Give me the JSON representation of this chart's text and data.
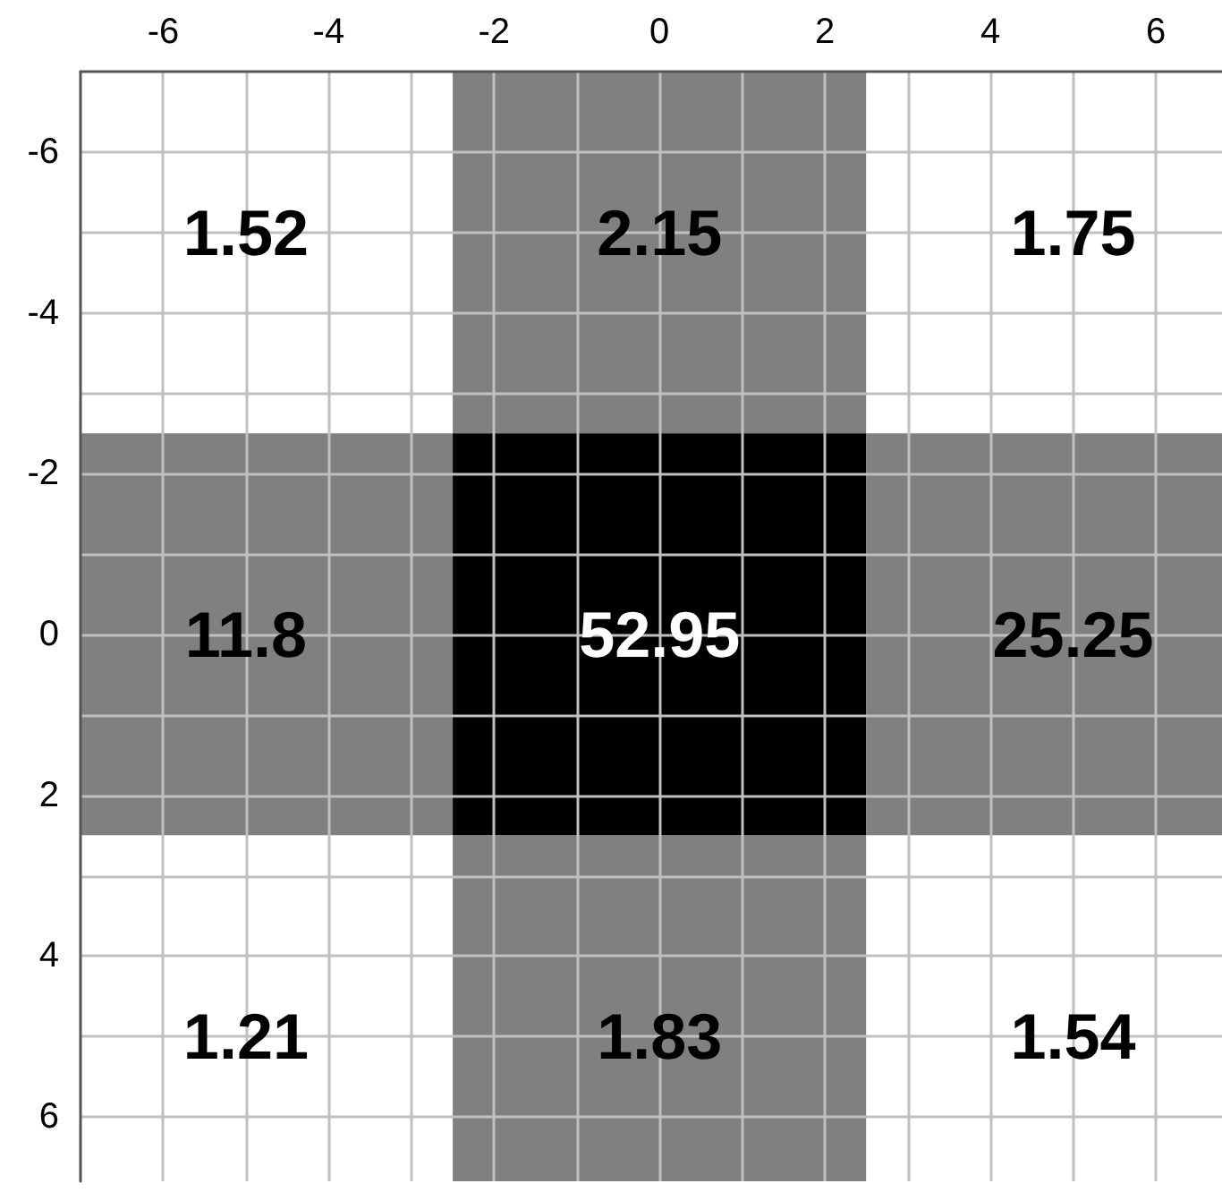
{
  "chart_data": {
    "type": "heatmap",
    "x": [
      -5,
      0,
      5
    ],
    "cells": [
      [
        1.52,
        2.15,
        1.75
      ],
      [
        11.8,
        52.95,
        25.25
      ],
      [
        1.21,
        1.83,
        1.54
      ]
    ],
    "colors": [
      [
        "#ffffff",
        "#808080",
        "#ffffff"
      ],
      [
        "#808080",
        "#000000",
        "#808080"
      ],
      [
        "#ffffff",
        "#808080",
        "#ffffff"
      ]
    ],
    "data_labels": true,
    "grid": true,
    "xlim": [
      -7,
      6.8
    ],
    "ylim": [
      6.8,
      -7
    ],
    "xticks": [
      -6,
      {
        "value": -5,
        "label": null
      },
      -4,
      {
        "value": -3,
        "label": null
      },
      -2,
      {
        "value": -1,
        "label": null
      },
      0,
      {
        "value": 1,
        "label": null
      },
      2,
      {
        "value": 3,
        "label": null
      },
      4,
      {
        "value": 5,
        "label": null
      },
      6
    ],
    "yticks": [
      -6,
      {
        "value": -5,
        "label": null
      },
      -4,
      {
        "value": -3,
        "label": null
      },
      -2,
      {
        "value": -1,
        "label": null
      },
      0,
      {
        "value": 1,
        "label": null
      },
      2,
      {
        "value": 3,
        "label": null
      },
      4,
      {
        "value": 5,
        "label": null
      },
      6
    ]
  }
}
